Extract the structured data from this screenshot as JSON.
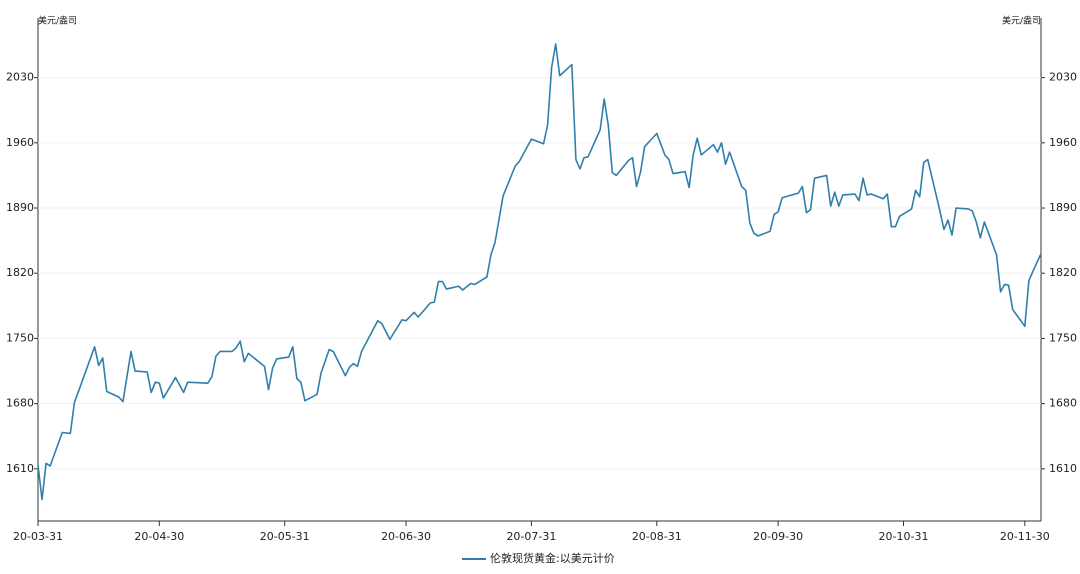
{
  "chart_data": {
    "type": "line",
    "y_label": "美元/盎司",
    "y2_label": "美元/盎司",
    "xlim": [
      "20-03-31",
      "20-12-04"
    ],
    "xticks": [
      "20-03-31",
      "20-04-30",
      "20-05-31",
      "20-06-30",
      "20-07-31",
      "20-08-31",
      "20-09-30",
      "20-10-31",
      "20-11-30"
    ],
    "ylim": [
      1554,
      2094
    ],
    "yticks": [
      1610,
      1680,
      1750,
      1820,
      1890,
      1960,
      2030
    ],
    "y2lim": [
      1554,
      2094
    ],
    "y2ticks": [
      1610,
      1680,
      1750,
      1820,
      1890,
      1960,
      2030
    ],
    "grid": true,
    "legend": "bottom",
    "x": [
      "20-03-31",
      "20-04-01",
      "20-04-02",
      "20-04-03",
      "20-04-06",
      "20-04-08",
      "20-04-09",
      "20-04-14",
      "20-04-15",
      "20-04-16",
      "20-04-17",
      "20-04-20",
      "20-04-21",
      "20-04-23",
      "20-04-24",
      "20-04-27",
      "20-04-28",
      "20-04-29",
      "20-04-30",
      "20-05-01",
      "20-05-04",
      "20-05-06",
      "20-05-07",
      "20-05-12",
      "20-05-13",
      "20-05-14",
      "20-05-15",
      "20-05-18",
      "20-05-19",
      "20-05-20",
      "20-05-21",
      "20-05-22",
      "20-05-26",
      "20-05-27",
      "20-05-28",
      "20-05-29",
      "20-06-01",
      "20-06-02",
      "20-06-03",
      "20-06-04",
      "20-06-05",
      "20-06-08",
      "20-06-09",
      "20-06-11",
      "20-06-12",
      "20-06-15",
      "20-06-16",
      "20-06-17",
      "20-06-18",
      "20-06-19",
      "20-06-23",
      "20-06-24",
      "20-06-26",
      "20-06-29",
      "20-06-30",
      "20-07-02",
      "20-07-03",
      "20-07-06",
      "20-07-07",
      "20-07-08",
      "20-07-09",
      "20-07-10",
      "20-07-13",
      "20-07-14",
      "20-07-16",
      "20-07-17",
      "20-07-20",
      "20-07-21",
      "20-07-22",
      "20-07-24",
      "20-07-27",
      "20-07-28",
      "20-07-30",
      "20-07-31",
      "20-08-03",
      "20-08-04",
      "20-08-05",
      "20-08-06",
      "20-08-07",
      "20-08-10",
      "20-08-11",
      "20-08-12",
      "20-08-13",
      "20-08-14",
      "20-08-17",
      "20-08-18",
      "20-08-19",
      "20-08-20",
      "20-08-21",
      "20-08-24",
      "20-08-25",
      "20-08-26",
      "20-08-27",
      "20-08-28",
      "20-08-31",
      "20-09-02",
      "20-09-03",
      "20-09-04",
      "20-09-07",
      "20-09-08",
      "20-09-09",
      "20-09-10",
      "20-09-11",
      "20-09-14",
      "20-09-15",
      "20-09-16",
      "20-09-17",
      "20-09-18",
      "20-09-21",
      "20-09-22",
      "20-09-23",
      "20-09-24",
      "20-09-25",
      "20-09-28",
      "20-09-29",
      "20-09-30",
      "20-10-01",
      "20-10-05",
      "20-10-06",
      "20-10-07",
      "20-10-08",
      "20-10-09",
      "20-10-12",
      "20-10-13",
      "20-10-14",
      "20-10-15",
      "20-10-16",
      "20-10-19",
      "20-10-20",
      "20-10-21",
      "20-10-22",
      "20-10-23",
      "20-10-26",
      "20-10-27",
      "20-10-28",
      "20-10-29",
      "20-10-30",
      "20-11-02",
      "20-11-03",
      "20-11-04",
      "20-11-05",
      "20-11-06",
      "20-11-09",
      "20-11-10",
      "20-11-11",
      "20-11-12",
      "20-11-13",
      "20-11-16",
      "20-11-17",
      "20-11-18",
      "20-11-19",
      "20-11-20",
      "20-11-23",
      "20-11-24",
      "20-11-25",
      "20-11-26",
      "20-11-27",
      "20-11-30",
      "20-12-01",
      "20-12-02",
      "20-12-04"
    ],
    "series": [
      {
        "name": "伦敦现货黄金:以美元计价",
        "color": "#2f7fab",
        "values": [
          1614,
          1577,
          1616,
          1613,
          1649,
          1648,
          1681,
          1741,
          1721,
          1729,
          1693,
          1687,
          1682,
          1736,
          1715,
          1714,
          1692,
          1703,
          1702,
          1686,
          1708,
          1692,
          1703,
          1702,
          1709,
          1731,
          1736,
          1736,
          1740,
          1747,
          1725,
          1734,
          1720,
          1695,
          1718,
          1728,
          1730,
          1741,
          1707,
          1703,
          1683,
          1690,
          1713,
          1738,
          1736,
          1710,
          1719,
          1723,
          1720,
          1736,
          1769,
          1766,
          1749,
          1770,
          1769,
          1778,
          1773,
          1788,
          1789,
          1811,
          1811,
          1803,
          1806,
          1802,
          1809,
          1808,
          1816,
          1840,
          1853,
          1903,
          1935,
          1940,
          1956,
          1964,
          1959,
          1979,
          2041,
          2066,
          2032,
          2044,
          1942,
          1932,
          1944,
          1945,
          1974,
          2007,
          1979,
          1928,
          1925,
          1941,
          1944,
          1913,
          1929,
          1956,
          1970,
          1947,
          1942,
          1927,
          1929,
          1912,
          1947,
          1965,
          1947,
          1958,
          1950,
          1960,
          1937,
          1950,
          1913,
          1909,
          1874,
          1863,
          1860,
          1865,
          1883,
          1886,
          1901,
          1906,
          1913,
          1885,
          1888,
          1922,
          1925,
          1892,
          1907,
          1892,
          1904,
          1905,
          1898,
          1922,
          1904,
          1905,
          1900,
          1905,
          1870,
          1870,
          1881,
          1889,
          1909,
          1902,
          1939,
          1942,
          1887,
          1867,
          1877,
          1861,
          1890,
          1889,
          1887,
          1875,
          1858,
          1875,
          1840,
          1800,
          1808,
          1807,
          1781,
          1763,
          1812,
          1822,
          1841
        ]
      }
    ]
  }
}
